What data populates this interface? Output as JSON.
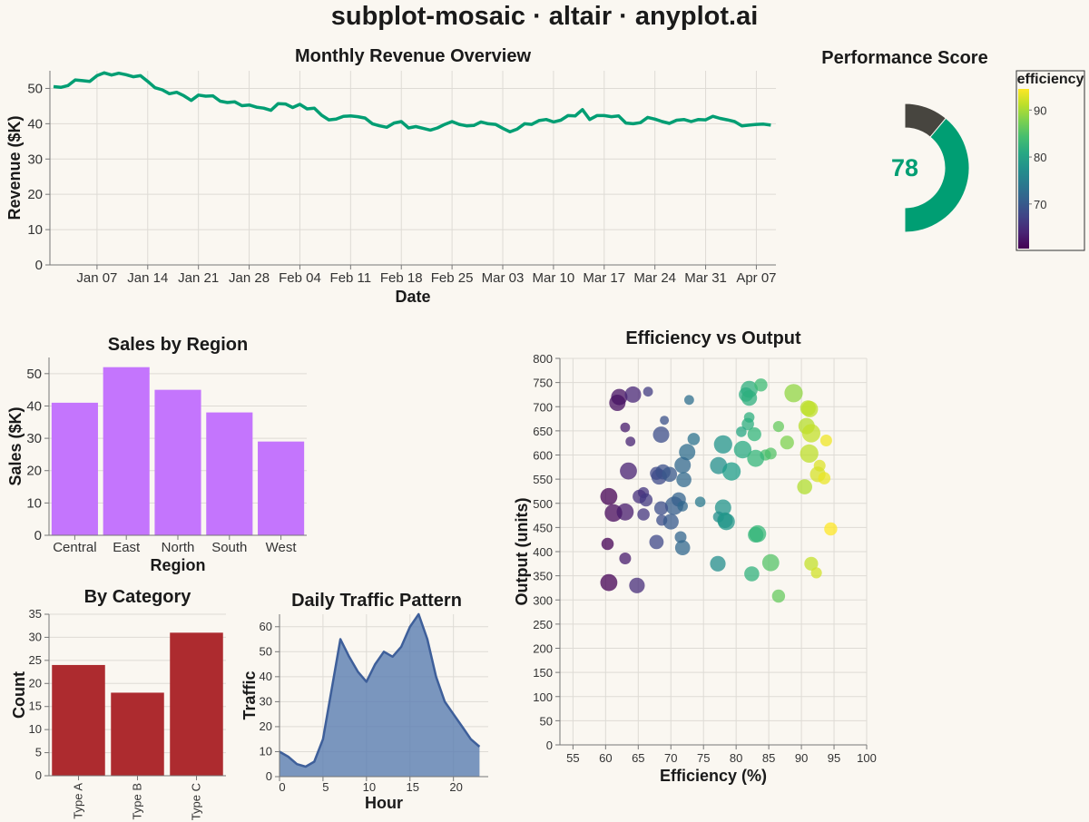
{
  "page_title": "subplot-mosaic · altair · anyplot.ai",
  "chart_data": [
    {
      "type": "line",
      "title": "Monthly Revenue Overview",
      "xlabel": "Date",
      "ylabel": "Revenue ($K)",
      "ylim": [
        0,
        55
      ],
      "y_ticks": [
        0,
        10,
        20,
        30,
        40,
        50
      ],
      "x_ticks": [
        "Jan 07",
        "Jan 14",
        "Jan 21",
        "Jan 28",
        "Feb 04",
        "Feb 11",
        "Feb 18",
        "Feb 25",
        "Mar 03",
        "Mar 10",
        "Mar 17",
        "Mar 24",
        "Mar 31",
        "Apr 07"
      ],
      "x_start": "Jan 01",
      "color": "#009E73",
      "grid": true,
      "values": [
        50.5,
        50.3,
        50.8,
        52.4,
        52.2,
        52.0,
        53.6,
        54.4,
        53.8,
        54.3,
        53.9,
        53.3,
        53.6,
        52.0,
        50.2,
        49.6,
        48.5,
        48.9,
        47.9,
        46.6,
        48.1,
        47.8,
        47.9,
        46.4,
        46.0,
        46.2,
        45.1,
        45.3,
        44.7,
        44.4,
        43.8,
        45.7,
        45.6,
        44.6,
        45.5,
        44.2,
        44.4,
        42.4,
        41.1,
        41.3,
        42.1,
        42.2,
        42.0,
        41.6,
        40.0,
        39.4,
        39.0,
        40.2,
        40.6,
        38.8,
        39.2,
        38.7,
        38.2,
        38.8,
        39.8,
        40.6,
        39.8,
        39.4,
        39.5,
        40.5,
        40.0,
        39.8,
        38.7,
        37.7,
        38.5,
        40.0,
        39.8,
        40.9,
        41.2,
        40.5,
        41.0,
        42.3,
        42.2,
        44.0,
        41.2,
        42.3,
        42.3,
        42.0,
        42.2,
        40.2,
        40.0,
        40.3,
        41.8,
        41.3,
        40.6,
        40.1,
        41.0,
        41.2,
        40.6,
        41.2,
        41.1,
        42.1,
        41.5,
        41.1,
        40.6,
        39.4,
        39.6,
        39.8,
        39.9,
        39.6
      ]
    },
    {
      "type": "pie",
      "title": "Performance Score",
      "value": 78,
      "max": 100,
      "colors": [
        "#009E73",
        "#47453F"
      ],
      "legend": {
        "title": "efficiency",
        "ticks": [
          70,
          80,
          90
        ],
        "domain": [
          60.5,
          94.5
        ],
        "placement": "right"
      }
    },
    {
      "type": "bar",
      "title": "Sales by Region",
      "xlabel": "Region",
      "ylabel": "Sales ($K)",
      "categories": [
        "Central",
        "East",
        "North",
        "South",
        "West"
      ],
      "values": [
        41,
        52,
        45,
        38,
        29
      ],
      "ylim": [
        0,
        55
      ],
      "y_ticks": [
        0,
        10,
        20,
        30,
        40,
        50
      ],
      "color": "#C475FD"
    },
    {
      "type": "bar",
      "title": "By Category",
      "xlabel": "",
      "ylabel": "Count",
      "categories": [
        "Type A",
        "Type B",
        "Type C"
      ],
      "values": [
        24,
        18,
        31
      ],
      "ylim": [
        0,
        35
      ],
      "y_ticks": [
        0,
        5,
        10,
        15,
        20,
        25,
        30,
        35
      ],
      "color": "#AD2B2F"
    },
    {
      "type": "area",
      "title": "Daily Traffic Pattern",
      "xlabel": "Hour",
      "ylabel": "Traffic",
      "x": [
        0,
        1,
        2,
        3,
        4,
        5,
        6,
        7,
        8,
        9,
        10,
        11,
        12,
        13,
        14,
        15,
        16,
        17,
        18,
        19,
        20,
        21,
        22,
        23
      ],
      "values": [
        10,
        8,
        5,
        4,
        6,
        15,
        35,
        55,
        48,
        42,
        38,
        45,
        50,
        48,
        52,
        60,
        65,
        55,
        40,
        30,
        25,
        20,
        15,
        12
      ],
      "xlim": [
        0,
        24
      ],
      "ylim": [
        0,
        65
      ],
      "x_ticks": [
        0,
        5,
        10,
        15,
        20
      ],
      "y_ticks": [
        0,
        10,
        20,
        30,
        40,
        50,
        60
      ],
      "color": "#5A7DB1"
    },
    {
      "type": "scatter",
      "title": "Efficiency vs Output",
      "xlabel": "Efficiency (%)",
      "ylabel": "Output (units)",
      "xlim": [
        53,
        100
      ],
      "ylim": [
        0,
        800
      ],
      "x_ticks": [
        55,
        60,
        65,
        70,
        75,
        80,
        85,
        90,
        95,
        100
      ],
      "y_ticks": [
        0,
        50,
        100,
        150,
        200,
        250,
        300,
        350,
        400,
        450,
        500,
        550,
        600,
        650,
        700,
        750,
        800
      ],
      "color_scale": "viridis",
      "points": [
        {
          "x": 61.8,
          "y": 708,
          "s": 2.5
        },
        {
          "x": 62.1,
          "y": 720,
          "s": 2.5
        },
        {
          "x": 64.2,
          "y": 725,
          "s": 2.5
        },
        {
          "x": 66.5,
          "y": 731,
          "s": 1.5
        },
        {
          "x": 72.8,
          "y": 714,
          "s": 1.5
        },
        {
          "x": 63.0,
          "y": 657,
          "s": 1.5
        },
        {
          "x": 63.8,
          "y": 628,
          "s": 1.5
        },
        {
          "x": 69.0,
          "y": 672,
          "s": 1.4
        },
        {
          "x": 68.5,
          "y": 642,
          "s": 2.5
        },
        {
          "x": 73.5,
          "y": 633,
          "s": 1.9
        },
        {
          "x": 72.5,
          "y": 606,
          "s": 2.5
        },
        {
          "x": 71.8,
          "y": 579,
          "s": 2.5
        },
        {
          "x": 72.0,
          "y": 549,
          "s": 2.3
        },
        {
          "x": 63.5,
          "y": 567,
          "s": 2.6
        },
        {
          "x": 67.8,
          "y": 562,
          "s": 2.0
        },
        {
          "x": 68.2,
          "y": 555,
          "s": 2.4
        },
        {
          "x": 68.8,
          "y": 565,
          "s": 2.3
        },
        {
          "x": 69.8,
          "y": 560,
          "s": 2.3
        },
        {
          "x": 65.8,
          "y": 522,
          "s": 1.7
        },
        {
          "x": 65.2,
          "y": 514,
          "s": 2.1
        },
        {
          "x": 66.2,
          "y": 507,
          "s": 2.0
        },
        {
          "x": 71.2,
          "y": 508,
          "s": 2.2
        },
        {
          "x": 70.5,
          "y": 495,
          "s": 2.8
        },
        {
          "x": 68.5,
          "y": 490,
          "s": 2.1
        },
        {
          "x": 71.8,
          "y": 494,
          "s": 1.6
        },
        {
          "x": 74.5,
          "y": 503,
          "s": 1.6
        },
        {
          "x": 60.5,
          "y": 514,
          "s": 2.6
        },
        {
          "x": 61.2,
          "y": 480,
          "s": 2.7
        },
        {
          "x": 63.0,
          "y": 482,
          "s": 2.6
        },
        {
          "x": 65.8,
          "y": 477,
          "s": 1.9
        },
        {
          "x": 68.6,
          "y": 465,
          "s": 1.7
        },
        {
          "x": 70.0,
          "y": 462,
          "s": 2.4
        },
        {
          "x": 71.5,
          "y": 430,
          "s": 1.8
        },
        {
          "x": 71.8,
          "y": 408,
          "s": 2.3
        },
        {
          "x": 67.8,
          "y": 420,
          "s": 2.2
        },
        {
          "x": 60.3,
          "y": 416,
          "s": 1.9
        },
        {
          "x": 63.0,
          "y": 386,
          "s": 1.8
        },
        {
          "x": 60.5,
          "y": 336,
          "s": 2.6
        },
        {
          "x": 64.8,
          "y": 330,
          "s": 2.4
        },
        {
          "x": 82.0,
          "y": 736,
          "s": 2.6
        },
        {
          "x": 83.8,
          "y": 745,
          "s": 2.0
        },
        {
          "x": 81.5,
          "y": 725,
          "s": 2.2
        },
        {
          "x": 82.0,
          "y": 718,
          "s": 2.4
        },
        {
          "x": 88.8,
          "y": 728,
          "s": 2.8
        },
        {
          "x": 91.0,
          "y": 697,
          "s": 2.4
        },
        {
          "x": 91.3,
          "y": 695,
          "s": 2.5
        },
        {
          "x": 82.0,
          "y": 678,
          "s": 1.6
        },
        {
          "x": 81.8,
          "y": 664,
          "s": 1.9
        },
        {
          "x": 86.5,
          "y": 659,
          "s": 1.7
        },
        {
          "x": 90.8,
          "y": 660,
          "s": 2.5
        },
        {
          "x": 91.5,
          "y": 645,
          "s": 2.8
        },
        {
          "x": 80.8,
          "y": 648,
          "s": 1.6
        },
        {
          "x": 82.8,
          "y": 643,
          "s": 2.1
        },
        {
          "x": 78.0,
          "y": 622,
          "s": 2.8
        },
        {
          "x": 81.0,
          "y": 611,
          "s": 2.7
        },
        {
          "x": 85.3,
          "y": 603,
          "s": 1.8
        },
        {
          "x": 84.5,
          "y": 600,
          "s": 1.7
        },
        {
          "x": 83.0,
          "y": 593,
          "s": 2.6
        },
        {
          "x": 87.8,
          "y": 626,
          "s": 2.1
        },
        {
          "x": 91.2,
          "y": 603,
          "s": 2.8
        },
        {
          "x": 93.8,
          "y": 630,
          "s": 1.8
        },
        {
          "x": 92.8,
          "y": 578,
          "s": 1.8
        },
        {
          "x": 77.3,
          "y": 578,
          "s": 2.6
        },
        {
          "x": 79.3,
          "y": 566,
          "s": 2.8
        },
        {
          "x": 92.5,
          "y": 560,
          "s": 2.4
        },
        {
          "x": 93.5,
          "y": 552,
          "s": 1.9
        },
        {
          "x": 90.5,
          "y": 534,
          "s": 2.3
        },
        {
          "x": 78.0,
          "y": 491,
          "s": 2.5
        },
        {
          "x": 77.3,
          "y": 472,
          "s": 1.7
        },
        {
          "x": 78.5,
          "y": 462,
          "s": 2.6
        },
        {
          "x": 78.3,
          "y": 465,
          "s": 2.4
        },
        {
          "x": 83.3,
          "y": 437,
          "s": 2.6
        },
        {
          "x": 83.0,
          "y": 435,
          "s": 2.4
        },
        {
          "x": 94.5,
          "y": 447,
          "s": 2.0
        },
        {
          "x": 77.2,
          "y": 375,
          "s": 2.4
        },
        {
          "x": 85.3,
          "y": 377,
          "s": 2.6
        },
        {
          "x": 91.5,
          "y": 375,
          "s": 2.1
        },
        {
          "x": 82.4,
          "y": 354,
          "s": 2.3
        },
        {
          "x": 92.3,
          "y": 356,
          "s": 1.7
        },
        {
          "x": 86.5,
          "y": 308,
          "s": 2.0
        }
      ]
    }
  ]
}
